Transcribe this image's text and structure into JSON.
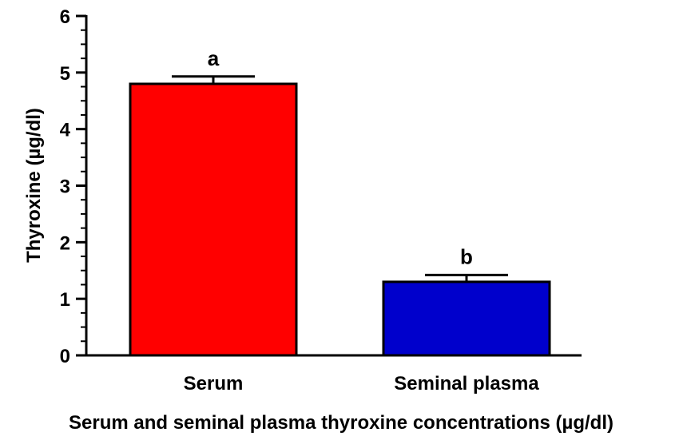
{
  "chart_data": {
    "type": "bar",
    "title": "",
    "xlabel": "Serum and seminal plasma thyroxine concentrations (µg/dl)",
    "ylabel": "Thyroxine (µg/dl)",
    "ylim": [
      0,
      6
    ],
    "yticks": [
      "0",
      "1",
      "2",
      "3",
      "4",
      "5",
      "6"
    ],
    "categories": [
      "Serum",
      "Seminal plasma"
    ],
    "values": [
      4.8,
      1.3
    ],
    "errors": [
      0.13,
      0.12
    ],
    "annotations": [
      "a",
      "b"
    ],
    "colors": [
      "#ff0000",
      "#0000cc"
    ],
    "grid": false,
    "legend": "none"
  }
}
